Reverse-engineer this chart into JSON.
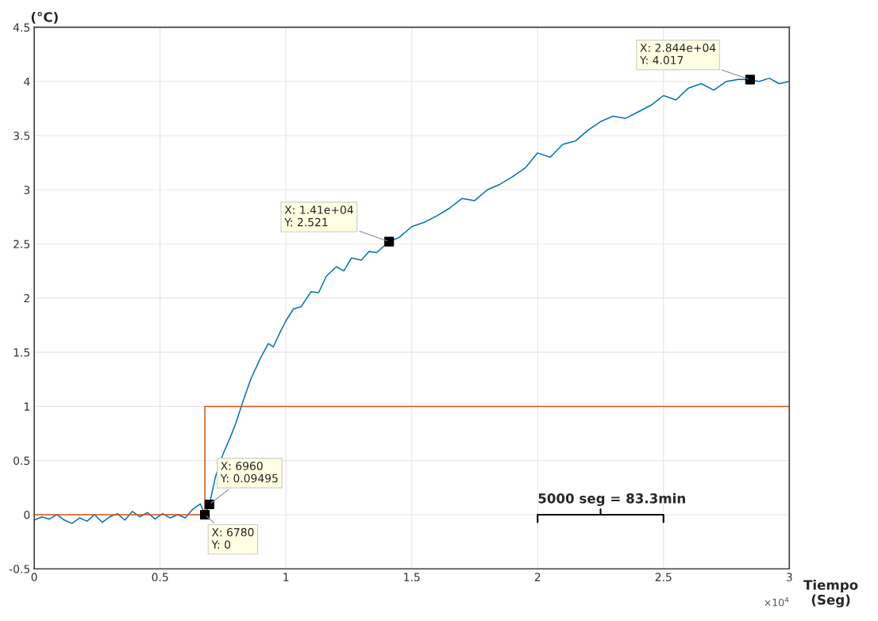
{
  "chart_data": {
    "type": "line",
    "ylabel": "(°C)",
    "xlabel": "Tiempo\n(Seg)",
    "xlim": [
      0,
      3
    ],
    "ylim": [
      -0.5,
      4.5
    ],
    "xticks": [
      0,
      0.5,
      1,
      1.5,
      2,
      2.5,
      3
    ],
    "yticks": [
      -0.5,
      0,
      0.5,
      1,
      1.5,
      2,
      2.5,
      3,
      3.5,
      4,
      4.5
    ],
    "grid": true,
    "legend": false,
    "series": [
      {
        "color": "#0072bd",
        "x": [
          0,
          0.03,
          0.06,
          0.09,
          0.12,
          0.15,
          0.18,
          0.21,
          0.24,
          0.27,
          0.3,
          0.33,
          0.36,
          0.39,
          0.42,
          0.45,
          0.48,
          0.51,
          0.54,
          0.57,
          0.6,
          0.63,
          0.66,
          0.678,
          0.696,
          0.72,
          0.75,
          0.78,
          0.8,
          0.83,
          0.86,
          0.9,
          0.93,
          0.95,
          0.98,
          1.0,
          1.03,
          1.06,
          1.1,
          1.13,
          1.16,
          1.2,
          1.23,
          1.26,
          1.3,
          1.33,
          1.36,
          1.41,
          1.45,
          1.5,
          1.55,
          1.6,
          1.65,
          1.7,
          1.75,
          1.8,
          1.85,
          1.9,
          1.95,
          2.0,
          2.05,
          2.1,
          2.15,
          2.2,
          2.25,
          2.3,
          2.35,
          2.4,
          2.45,
          2.5,
          2.55,
          2.6,
          2.65,
          2.7,
          2.75,
          2.8,
          2.844,
          2.88,
          2.92,
          2.96,
          3.0
        ],
        "values": [
          -0.05,
          -0.02,
          -0.04,
          0.0,
          -0.05,
          -0.08,
          -0.03,
          -0.06,
          0.0,
          -0.07,
          -0.02,
          0.01,
          -0.05,
          0.03,
          -0.02,
          0.02,
          -0.04,
          0.01,
          -0.03,
          0.0,
          -0.03,
          0.05,
          0.1,
          0.0,
          0.095,
          0.35,
          0.56,
          0.72,
          0.84,
          1.05,
          1.25,
          1.45,
          1.58,
          1.55,
          1.7,
          1.79,
          1.9,
          1.92,
          2.06,
          2.05,
          2.2,
          2.29,
          2.25,
          2.37,
          2.35,
          2.43,
          2.42,
          2.521,
          2.56,
          2.66,
          2.7,
          2.76,
          2.83,
          2.92,
          2.9,
          3.0,
          3.05,
          3.12,
          3.2,
          3.34,
          3.3,
          3.42,
          3.45,
          3.55,
          3.63,
          3.68,
          3.66,
          3.72,
          3.78,
          3.87,
          3.83,
          3.94,
          3.98,
          3.92,
          4.0,
          4.02,
          4.017,
          4.0,
          4.03,
          3.98,
          4.0
        ]
      },
      {
        "color": "#d95319",
        "x": [
          0,
          0.678,
          0.678,
          3
        ],
        "values": [
          0,
          0,
          1,
          1
        ]
      },
      {
        "type": "scatter",
        "marker": "square",
        "color": "#000000",
        "x": [
          0.678,
          0.696,
          1.41,
          2.844
        ],
        "values": [
          0,
          0.09495,
          2.521,
          4.017
        ]
      }
    ],
    "annotations": [
      {
        "text": "X: 6780\nY: 0",
        "x": 0.678,
        "y": 0
      },
      {
        "text": "X: 6960\nY: 0.09495",
        "x": 0.696,
        "y": 0.09495
      },
      {
        "text": "X: 1.41e+04\nY: 2.521",
        "x": 1.41,
        "y": 2.521
      },
      {
        "text": "X: 2.844e+04\nY: 4.017",
        "x": 2.844,
        "y": 4.017
      },
      "5000 seg = 83.3min",
      "×10$^{4}$"
    ]
  }
}
